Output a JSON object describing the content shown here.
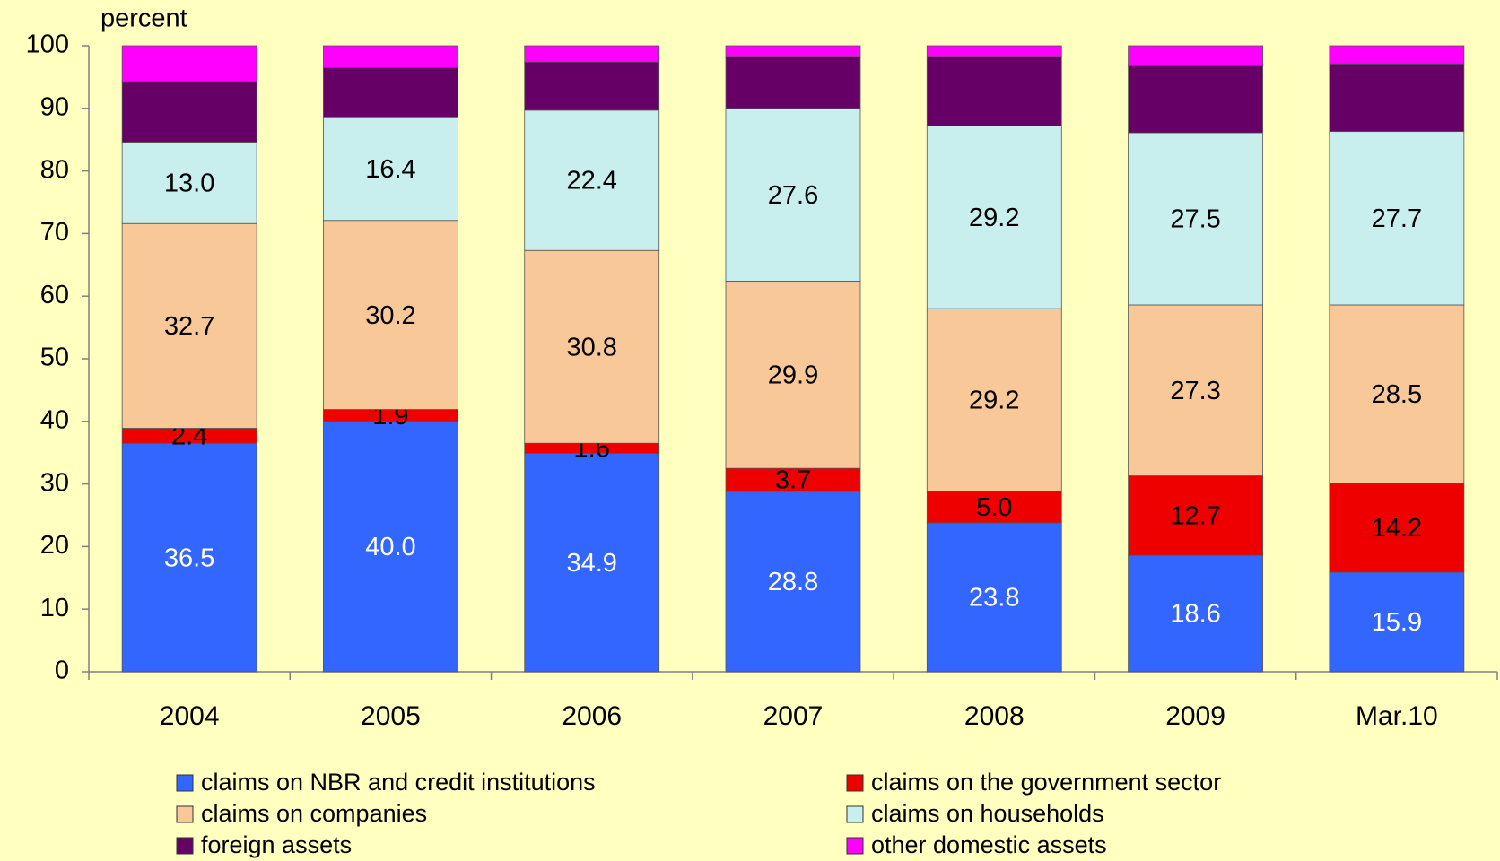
{
  "chart_data": {
    "type": "stacked_bar",
    "y_label": "percent",
    "categories": [
      "2004",
      "2005",
      "2006",
      "2007",
      "2008",
      "2009",
      "Mar.10"
    ],
    "ylim": [
      0,
      100
    ],
    "yticks": [
      0,
      10,
      20,
      30,
      40,
      50,
      60,
      70,
      80,
      90,
      100
    ],
    "series": [
      {
        "name": "claims on NBR and credit institutions",
        "color": "#3366ff",
        "values": [
          36.5,
          40.0,
          34.9,
          28.8,
          23.8,
          18.6,
          15.9
        ],
        "value_labels": [
          "36.5",
          "40.0",
          "34.9",
          "28.8",
          "23.8",
          "18.6",
          "15.9"
        ]
      },
      {
        "name": "claims on the government sector",
        "color": "#ee0000",
        "values": [
          2.4,
          1.9,
          1.6,
          3.7,
          5.0,
          12.7,
          14.2
        ],
        "value_labels": [
          "2.4",
          "1.9",
          "1.6",
          "3.7",
          "5.0",
          "12.7",
          "14.2"
        ]
      },
      {
        "name": "claims on companies",
        "color": "#f8c898",
        "values": [
          32.7,
          30.2,
          30.8,
          29.9,
          29.2,
          27.3,
          28.5
        ],
        "value_labels": [
          "32.7",
          "30.2",
          "30.8",
          "29.9",
          "29.2",
          "27.3",
          "28.5"
        ]
      },
      {
        "name": "claims on households",
        "color": "#c8eeee",
        "values": [
          13.0,
          16.4,
          22.4,
          27.6,
          29.2,
          27.5,
          27.7
        ],
        "value_labels": [
          "13.0",
          "16.4",
          "22.4",
          "27.6",
          "29.2",
          "27.5",
          "27.7"
        ]
      },
      {
        "name": "foreign assets",
        "color": "#660066",
        "values": [
          9.7,
          8.0,
          7.7,
          8.3,
          11.1,
          10.7,
          10.8
        ]
      },
      {
        "name": "other domestic assets",
        "color": "#ff00ff",
        "values": [
          5.7,
          3.5,
          2.6,
          1.7,
          1.7,
          3.2,
          2.9
        ]
      }
    ]
  }
}
